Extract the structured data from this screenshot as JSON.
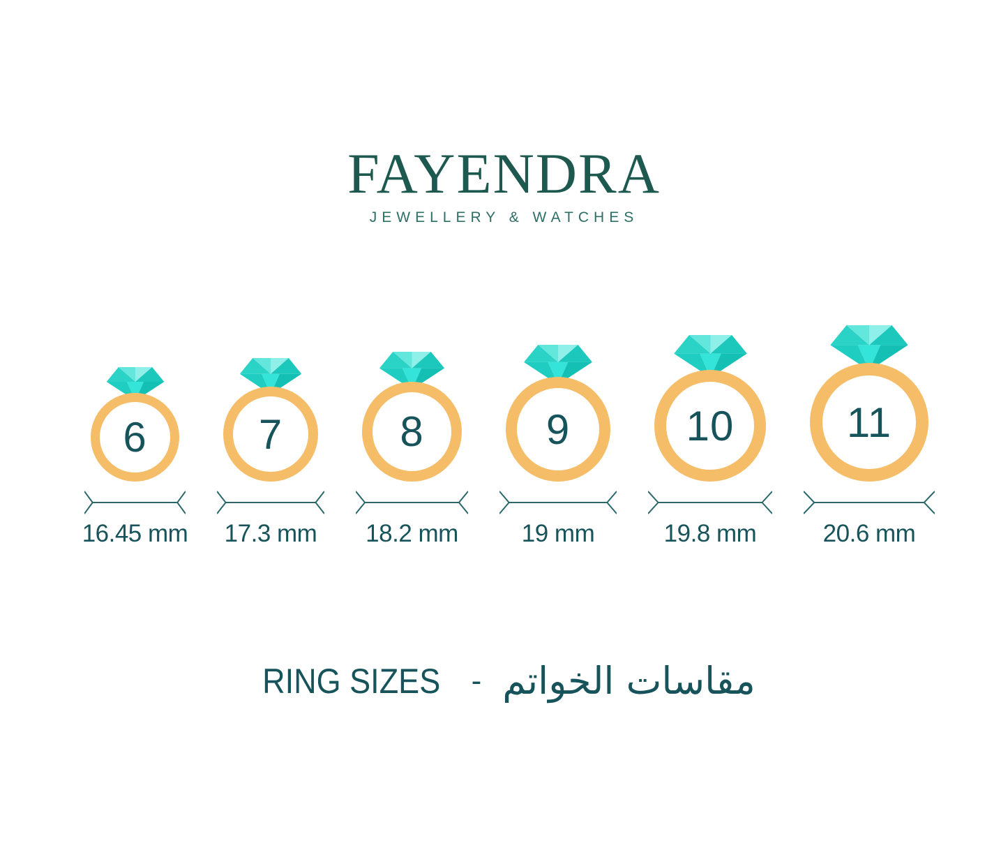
{
  "brand": {
    "name": "FAYENDRA",
    "tagline": "JEWELLERY & WATCHES"
  },
  "rings": [
    {
      "size": "6",
      "diameter": "16.45 mm"
    },
    {
      "size": "7",
      "diameter": "17.3 mm"
    },
    {
      "size": "8",
      "diameter": "18.2 mm"
    },
    {
      "size": "9",
      "diameter": "19 mm"
    },
    {
      "size": "10",
      "diameter": "19.8 mm"
    },
    {
      "size": "11",
      "diameter": "20.6 mm"
    }
  ],
  "footer": {
    "title_en": "RING SIZES",
    "separator": "-",
    "title_ar": "مقاسات الخواتم"
  },
  "colors": {
    "logo_green": "#1E5950",
    "tagline_green": "#2E6E64",
    "text_teal": "#17535A",
    "band_orange": "#F6BD69",
    "line_teal": "#2A686B",
    "diamond_facets": [
      "#2BD2C6",
      "#63E7DD",
      "#8FF0E9",
      "#1CC8BC",
      "#1FCDC1",
      "#35E4D9",
      "#14BFB4"
    ]
  }
}
